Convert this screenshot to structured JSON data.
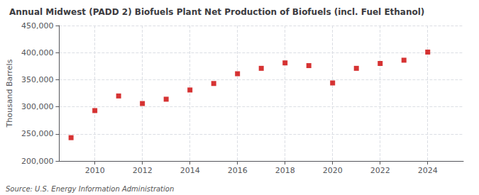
{
  "chart_data": {
    "type": "scatter",
    "title": "Annual Midwest (PADD 2) Biofuels Plant Net Production of Biofuels (incl. Fuel Ethanol)",
    "ylabel": "Thousand Barrels",
    "annotations": [
      "Source: U.S. Energy Information Administration"
    ],
    "x": [
      2009,
      2010,
      2011,
      2012,
      2013,
      2014,
      2015,
      2016,
      2017,
      2018,
      2019,
      2020,
      2021,
      2022,
      2023,
      2024
    ],
    "values": [
      243000,
      293000,
      320000,
      306000,
      314000,
      331000,
      343000,
      361000,
      371000,
      381000,
      376000,
      344000,
      371000,
      380000,
      386000,
      401000
    ],
    "color": "#cc0000",
    "marker": "square",
    "xlim": [
      2008.5,
      2025.5
    ],
    "xticks": [
      2010,
      2012,
      2014,
      2016,
      2018,
      2020,
      2022,
      2024
    ],
    "ylim": [
      200000,
      450000
    ],
    "yticks": [
      {
        "value": 200000,
        "label": "200,000"
      },
      {
        "value": 250000,
        "label": "250,000"
      },
      {
        "value": 300000,
        "label": "300,000"
      },
      {
        "value": 350000,
        "label": "350,000"
      },
      {
        "value": 400000,
        "label": "400,000"
      },
      {
        "value": 450000,
        "label": "450,000"
      }
    ],
    "grid": true
  }
}
